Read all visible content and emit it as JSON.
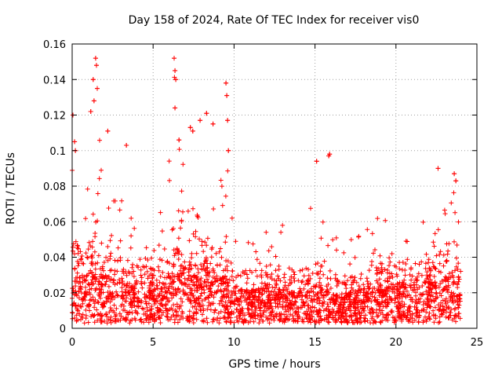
{
  "chart_data": {
    "type": "scatter",
    "title": "Day 158 of 2024, Rate Of TEC Index for receiver vis0",
    "xlabel": "GPS time / hours",
    "ylabel": "ROTI / TECUs",
    "xlim": [
      0,
      25
    ],
    "ylim": [
      0,
      0.16
    ],
    "xticks": [
      0,
      5,
      10,
      15,
      20,
      25
    ],
    "yticks": [
      0,
      0.02,
      0.04,
      0.06,
      0.08,
      0.1,
      0.12,
      0.14,
      0.16
    ],
    "ytick_labels": [
      "0",
      "0.02",
      "0.04",
      "0.06",
      "0.08",
      "0.1",
      "0.12",
      "0.14",
      "0.16"
    ],
    "grid": true,
    "marker": "+",
    "color": "#ff0000",
    "series": [
      {
        "name": "vis0",
        "envelope": {
          "x": [
            0,
            0.1,
            0.3,
            0.6,
            1.0,
            1.3,
            1.5,
            1.7,
            2.0,
            2.5,
            3.0,
            3.5,
            4.0,
            4.5,
            5.0,
            5.5,
            6.0,
            6.3,
            6.5,
            6.8,
            7.0,
            7.5,
            7.8,
            8.0,
            8.5,
            9.0,
            9.5,
            9.7,
            10.0,
            11.0,
            12.0,
            13.0,
            14.0,
            14.5,
            15.0,
            15.3,
            15.8,
            16.0,
            16.5,
            17.0,
            18.0,
            19.0,
            19.5,
            20.0,
            20.5,
            21.0,
            21.5,
            22.0,
            22.5,
            22.8,
            23.0,
            23.5,
            23.7,
            24.0
          ],
          "peak": [
            0.09,
            0.12,
            0.09,
            0.075,
            0.09,
            0.14,
            0.152,
            0.12,
            0.095,
            0.1,
            0.085,
            0.103,
            0.07,
            0.09,
            0.075,
            0.08,
            0.1,
            0.145,
            0.152,
            0.115,
            0.1,
            0.112,
            0.115,
            0.12,
            0.08,
            0.065,
            0.138,
            0.1,
            0.06,
            0.06,
            0.063,
            0.058,
            0.06,
            0.058,
            0.094,
            0.065,
            0.097,
            0.05,
            0.055,
            0.048,
            0.06,
            0.063,
            0.065,
            0.068,
            0.073,
            0.06,
            0.065,
            0.06,
            0.073,
            0.09,
            0.075,
            0.085,
            0.083,
            0.05
          ],
          "typical": [
            0.03,
            0.04,
            0.035,
            0.03,
            0.035,
            0.045,
            0.05,
            0.04,
            0.035,
            0.03,
            0.03,
            0.028,
            0.03,
            0.03,
            0.028,
            0.03,
            0.035,
            0.045,
            0.05,
            0.045,
            0.04,
            0.04,
            0.04,
            0.04,
            0.035,
            0.032,
            0.035,
            0.03,
            0.025,
            0.025,
            0.025,
            0.024,
            0.025,
            0.024,
            0.028,
            0.026,
            0.028,
            0.022,
            0.022,
            0.022,
            0.024,
            0.026,
            0.026,
            0.028,
            0.03,
            0.027,
            0.027,
            0.028,
            0.032,
            0.035,
            0.033,
            0.035,
            0.035,
            0.03
          ],
          "floor": 0.003
        },
        "highlights": [
          {
            "x": 0.05,
            "y": 0.12
          },
          {
            "x": 0.15,
            "y": 0.105
          },
          {
            "x": 0.2,
            "y": 0.1
          },
          {
            "x": 1.3,
            "y": 0.14
          },
          {
            "x": 1.45,
            "y": 0.152
          },
          {
            "x": 1.5,
            "y": 0.148
          },
          {
            "x": 1.35,
            "y": 0.128
          },
          {
            "x": 1.15,
            "y": 0.122
          },
          {
            "x": 1.55,
            "y": 0.135
          },
          {
            "x": 2.2,
            "y": 0.111
          },
          {
            "x": 3.35,
            "y": 0.103
          },
          {
            "x": 6.3,
            "y": 0.152
          },
          {
            "x": 6.35,
            "y": 0.145
          },
          {
            "x": 6.4,
            "y": 0.14
          },
          {
            "x": 6.35,
            "y": 0.124
          },
          {
            "x": 6.6,
            "y": 0.106
          },
          {
            "x": 7.3,
            "y": 0.113
          },
          {
            "x": 7.45,
            "y": 0.111
          },
          {
            "x": 7.9,
            "y": 0.117
          },
          {
            "x": 8.3,
            "y": 0.121
          },
          {
            "x": 8.7,
            "y": 0.115
          },
          {
            "x": 9.5,
            "y": 0.138
          },
          {
            "x": 9.55,
            "y": 0.131
          },
          {
            "x": 9.6,
            "y": 0.117
          },
          {
            "x": 9.65,
            "y": 0.1
          },
          {
            "x": 15.1,
            "y": 0.094
          },
          {
            "x": 15.85,
            "y": 0.097
          },
          {
            "x": 15.9,
            "y": 0.098
          },
          {
            "x": 22.6,
            "y": 0.09
          },
          {
            "x": 23.6,
            "y": 0.087
          },
          {
            "x": 23.7,
            "y": 0.083
          }
        ]
      }
    ]
  }
}
